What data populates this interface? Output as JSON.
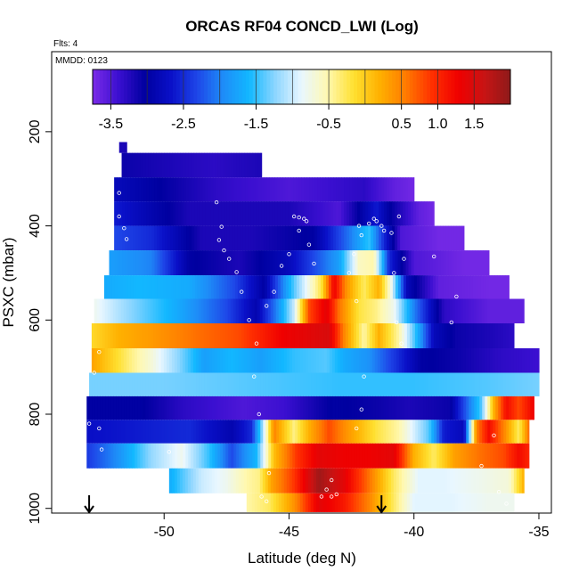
{
  "chart_data": {
    "type": "heatmap",
    "title": "ORCAS RF04 CONCD_LWI (Log)",
    "annotations": [
      "Flts: 4",
      "MMDD: 0123"
    ],
    "xlabel": "Latitude (deg N)",
    "ylabel": "PSXC (mbar)",
    "xlim": [
      -54.5,
      -34.5
    ],
    "ylim": [
      1010,
      30
    ],
    "y_reversed": true,
    "x_ticks": [
      -50,
      -45,
      -40,
      -35
    ],
    "y_ticks": [
      200,
      400,
      600,
      800,
      1000
    ],
    "colorbar": {
      "range": [
        -3.75,
        2.0
      ],
      "ticks": [
        -3.5,
        -2.5,
        -1.5,
        -0.5,
        0.5,
        1.0,
        1.5
      ],
      "tick_labels": [
        "-3.5",
        "-2.5",
        "-1.5",
        "-0.5",
        "0.5",
        "1.0",
        "1.5"
      ],
      "colors": [
        "#7B2CE8",
        "#3A0FD0",
        "#0000A0",
        "#0A10C8",
        "#1E46E8",
        "#1E8CF8",
        "#12B8FF",
        "#8ED6FF",
        "#E9F7FF",
        "#FFF8B0",
        "#FFE030",
        "#FFB000",
        "#FF7A00",
        "#FF3000",
        "#F00000",
        "#C81414",
        "#8E1A1A"
      ]
    },
    "bands": [
      {
        "p_top": 222,
        "p_bot": 245,
        "x_start": -51.8,
        "x_end": -51.5,
        "knots": [
          [
            -51.8,
            -3.2
          ],
          [
            -51.5,
            -3.2
          ]
        ]
      },
      {
        "p_top": 245,
        "p_bot": 297,
        "x_start": -51.7,
        "x_end": -46.1,
        "knots": [
          [
            -51.7,
            -3.1
          ],
          [
            -48,
            -3.3
          ],
          [
            -46.1,
            -3.2
          ]
        ]
      },
      {
        "p_top": 297,
        "p_bot": 348,
        "x_start": -52.0,
        "x_end": -40.0,
        "knots": [
          [
            -52,
            -2.8
          ],
          [
            -48,
            -3.3
          ],
          [
            -45,
            -3.5
          ],
          [
            -42,
            -3.3
          ],
          [
            -40.8,
            -3.6
          ],
          [
            -40,
            -3.7
          ]
        ]
      },
      {
        "p_top": 348,
        "p_bot": 400,
        "x_start": -52.0,
        "x_end": -39.2,
        "knots": [
          [
            -52,
            -2.6
          ],
          [
            -49,
            -3.2
          ],
          [
            -45,
            -3.2
          ],
          [
            -43,
            -3.5
          ],
          [
            -41.5,
            -2.6
          ],
          [
            -41,
            -3.0
          ],
          [
            -40.2,
            -3.4
          ],
          [
            -39.8,
            -3.6
          ],
          [
            -39.2,
            -3.7
          ]
        ]
      },
      {
        "p_top": 400,
        "p_bot": 452,
        "x_start": -52.0,
        "x_end": -38.0,
        "knots": [
          [
            -52,
            -2.3
          ],
          [
            -50.5,
            -2.5
          ],
          [
            -48.5,
            -3.2
          ],
          [
            -46.5,
            -3.2
          ],
          [
            -44,
            -3.0
          ],
          [
            -42.5,
            -2.0
          ],
          [
            -41.8,
            -1.5
          ],
          [
            -41.2,
            -2.5
          ],
          [
            -40.5,
            -3.5
          ],
          [
            -39,
            -3.7
          ],
          [
            -38,
            -3.7
          ]
        ]
      },
      {
        "p_top": 452,
        "p_bot": 505,
        "x_start": -52.2,
        "x_end": -37.0,
        "knots": [
          [
            -52.2,
            -1.8
          ],
          [
            -50.5,
            -2.0
          ],
          [
            -49,
            -3.0
          ],
          [
            -47,
            -3.2
          ],
          [
            -45,
            -2.8
          ],
          [
            -43,
            -1.8
          ],
          [
            -42.2,
            -0.6
          ],
          [
            -41.6,
            -0.5
          ],
          [
            -41,
            -2.5
          ],
          [
            -40,
            -3.5
          ],
          [
            -38,
            -3.7
          ],
          [
            -37,
            -3.7
          ]
        ]
      },
      {
        "p_top": 505,
        "p_bot": 555,
        "x_start": -52.4,
        "x_end": -36.2,
        "knots": [
          [
            -52.4,
            -1.7
          ],
          [
            -51,
            -1.6
          ],
          [
            -49,
            -1.7
          ],
          [
            -47.2,
            -2.3
          ],
          [
            -46,
            -3.0
          ],
          [
            -44.8,
            -1.4
          ],
          [
            -43.7,
            -0.2
          ],
          [
            -43.2,
            1.3
          ],
          [
            -42.7,
            0.4
          ],
          [
            -42,
            -0.3
          ],
          [
            -41.4,
            0.2
          ],
          [
            -40.9,
            -0.8
          ],
          [
            -40.3,
            -2.8
          ],
          [
            -39,
            -3.6
          ],
          [
            -37,
            -3.7
          ],
          [
            -36.2,
            -3.7
          ]
        ]
      },
      {
        "p_top": 555,
        "p_bot": 607,
        "x_start": -52.8,
        "x_end": -35.6,
        "knots": [
          [
            -52.8,
            -0.8
          ],
          [
            -51.5,
            -1.2
          ],
          [
            -49.5,
            -1.7
          ],
          [
            -47.5,
            -2.3
          ],
          [
            -46.3,
            -2.9
          ],
          [
            -45.5,
            -2.0
          ],
          [
            -44.8,
            -1.0
          ],
          [
            -44.2,
            0.8
          ],
          [
            -43.5,
            1.4
          ],
          [
            -43,
            0.6
          ],
          [
            -42.2,
            -0.2
          ],
          [
            -41.5,
            -0.4
          ],
          [
            -40.8,
            -0.8
          ],
          [
            -40,
            -2.0
          ],
          [
            -38.8,
            -3.3
          ],
          [
            -37,
            -3.6
          ],
          [
            -35.6,
            -3.6
          ]
        ]
      },
      {
        "p_top": 607,
        "p_bot": 660,
        "x_start": -52.9,
        "x_end": -36.0,
        "knots": [
          [
            -52.9,
            -0.1
          ],
          [
            -51.8,
            0.2
          ],
          [
            -50.5,
            0.35
          ],
          [
            -48.8,
            0.6
          ],
          [
            -47,
            0.8
          ],
          [
            -45.2,
            1.3
          ],
          [
            -43.4,
            1.5
          ],
          [
            -42.8,
            0.5
          ],
          [
            -42,
            -0.5
          ],
          [
            -41.4,
            0.2
          ],
          [
            -40.6,
            -0.5
          ],
          [
            -40,
            -1.4
          ],
          [
            -39.2,
            -2.8
          ],
          [
            -38.3,
            -3.1
          ],
          [
            -37,
            -3.2
          ],
          [
            -36,
            -3.3
          ]
        ]
      },
      {
        "p_top": 660,
        "p_bot": 712,
        "x_start": -52.9,
        "x_end": -35.0,
        "knots": [
          [
            -52.9,
            0.3
          ],
          [
            -52.2,
            0.0
          ],
          [
            -51.3,
            -0.4
          ],
          [
            -50.5,
            -0.7
          ],
          [
            -49.3,
            -1.3
          ],
          [
            -48.4,
            -1.8
          ],
          [
            -47.3,
            -1.6
          ],
          [
            -46.1,
            -1.8
          ],
          [
            -44.8,
            -1.5
          ],
          [
            -43.5,
            -1.4
          ],
          [
            -42.8,
            -1.7
          ],
          [
            -41.8,
            -1.9
          ],
          [
            -41,
            -2.3
          ],
          [
            -39.7,
            -3.0
          ],
          [
            -38.3,
            -3.1
          ],
          [
            -36.6,
            -3.3
          ],
          [
            -35,
            -3.4
          ]
        ]
      },
      {
        "p_top": 712,
        "p_bot": 762,
        "x_start": -53.0,
        "x_end": -35.0,
        "knots": [
          [
            -53,
            -1.3
          ],
          [
            -50,
            -1.3
          ],
          [
            -46.5,
            -1.4
          ],
          [
            -43,
            -1.5
          ],
          [
            -40,
            -1.5
          ],
          [
            -37,
            -1.4
          ],
          [
            -35,
            -1.3
          ]
        ]
      },
      {
        "p_top": 762,
        "p_bot": 812,
        "x_start": -53.1,
        "x_end": -35.2,
        "knots": [
          [
            -53.1,
            -3.0
          ],
          [
            -51,
            -3.0
          ],
          [
            -49.2,
            -3.3
          ],
          [
            -46.8,
            -3.5
          ],
          [
            -45.2,
            -3.4
          ],
          [
            -44.2,
            -3.2
          ],
          [
            -43.2,
            -3.0
          ],
          [
            -41.5,
            -3.1
          ],
          [
            -40.2,
            -3.2
          ],
          [
            -38.6,
            -3.1
          ],
          [
            -37.3,
            -1.4
          ],
          [
            -36.8,
            0.2
          ],
          [
            -36.3,
            1.2
          ],
          [
            -35.8,
            0.8
          ],
          [
            -35.2,
            1.3
          ]
        ]
      },
      {
        "p_top": 812,
        "p_bot": 862,
        "x_start": -53.1,
        "x_end": -35.4,
        "knots": [
          [
            -53.1,
            -2.7
          ],
          [
            -51,
            -2.6
          ],
          [
            -49,
            -2.5
          ],
          [
            -47.3,
            -2.9
          ],
          [
            -46.5,
            -2.5
          ],
          [
            -46.1,
            -1.3
          ],
          [
            -45.6,
            0.5
          ],
          [
            -44.8,
            -0.4
          ],
          [
            -44.2,
            0.2
          ],
          [
            -43.4,
            0.8
          ],
          [
            -42.7,
            0.4
          ],
          [
            -41.5,
            -0.2
          ],
          [
            -40.6,
            -0.5
          ],
          [
            -39.4,
            -1.4
          ],
          [
            -38.8,
            -2.6
          ],
          [
            -38,
            -2.8
          ],
          [
            -37.5,
            0.5
          ],
          [
            -37,
            1.2
          ],
          [
            -36.4,
            0.5
          ],
          [
            -35.8,
            -0.3
          ],
          [
            -35.4,
            0.6
          ]
        ]
      },
      {
        "p_top": 862,
        "p_bot": 915,
        "x_start": -53.1,
        "x_end": -35.4,
        "knots": [
          [
            -53.1,
            -2.4
          ],
          [
            -51.8,
            -1.9
          ],
          [
            -50.5,
            -1.2
          ],
          [
            -49.3,
            -0.8
          ],
          [
            -48.2,
            -1.5
          ],
          [
            -47.3,
            -2.3
          ],
          [
            -46.3,
            -1.6
          ],
          [
            -45.6,
            0.1
          ],
          [
            -44.7,
            0.9
          ],
          [
            -43.8,
            1.4
          ],
          [
            -42.8,
            1.3
          ],
          [
            -41.8,
            1.3
          ],
          [
            -40.8,
            1.4
          ],
          [
            -40,
            0.2
          ],
          [
            -39.2,
            -0.3
          ],
          [
            -38.4,
            0.3
          ],
          [
            -37.4,
            0.6
          ],
          [
            -36.4,
            0.8
          ],
          [
            -35.8,
            1.2
          ],
          [
            -35.4,
            1.0
          ]
        ]
      },
      {
        "p_top": 915,
        "p_bot": 968,
        "x_start": -49.8,
        "x_end": -35.6,
        "knots": [
          [
            -49.8,
            -1.7
          ],
          [
            -48.5,
            -1.0
          ],
          [
            -47.5,
            -0.8
          ],
          [
            -46.7,
            -0.5
          ],
          [
            -46.2,
            -0.4
          ],
          [
            -45.7,
            0.3
          ],
          [
            -44.8,
            0.9
          ],
          [
            -43.8,
            1.9
          ],
          [
            -42.8,
            1.4
          ],
          [
            -41.8,
            0.6
          ],
          [
            -40.8,
            -0.3
          ],
          [
            -39.8,
            -0.9
          ],
          [
            -38.8,
            -0.9
          ],
          [
            -37.5,
            -0.8
          ],
          [
            -36.2,
            -0.7
          ],
          [
            -35.6,
            0.2
          ]
        ]
      },
      {
        "p_top": 968,
        "p_bot": 1008,
        "x_start": -46.7,
        "x_end": -36.0,
        "knots": [
          [
            -46.7,
            -0.5
          ],
          [
            -45.8,
            -0.3
          ],
          [
            -44.8,
            0.4
          ],
          [
            -43.8,
            1.4
          ],
          [
            -42.8,
            1.1
          ],
          [
            -41.8,
            0.5
          ],
          [
            -40.8,
            -0.3
          ],
          [
            -40,
            -0.9
          ],
          [
            -38.5,
            -0.9
          ],
          [
            -37,
            -0.8
          ],
          [
            -36,
            -0.8
          ]
        ]
      }
    ],
    "points": [
      [
        -52.6,
        668
      ],
      [
        -52.8,
        712
      ],
      [
        -53.0,
        820
      ],
      [
        -52.6,
        830
      ],
      [
        -52.5,
        875
      ],
      [
        -51.9,
        232
      ],
      [
        -51.8,
        330
      ],
      [
        -51.8,
        380
      ],
      [
        -51.6,
        405
      ],
      [
        -51.5,
        428
      ],
      [
        -49.8,
        880
      ],
      [
        -47.7,
        402
      ],
      [
        -47.9,
        350
      ],
      [
        -47.8,
        430
      ],
      [
        -47.6,
        452
      ],
      [
        -47.4,
        470
      ],
      [
        -47.1,
        498
      ],
      [
        -46.9,
        540
      ],
      [
        -46.6,
        600
      ],
      [
        -46.3,
        650
      ],
      [
        -46.4,
        720
      ],
      [
        -46.2,
        800
      ],
      [
        -45.8,
        925
      ],
      [
        -46.1,
        975
      ],
      [
        -45.9,
        985
      ],
      [
        -45.0,
        460
      ],
      [
        -45.3,
        485
      ],
      [
        -45.6,
        540
      ],
      [
        -45.9,
        570
      ],
      [
        -44.8,
        380
      ],
      [
        -44.6,
        382
      ],
      [
        -44.4,
        385
      ],
      [
        -44.3,
        390
      ],
      [
        -44.6,
        410
      ],
      [
        -44.2,
        440
      ],
      [
        -44.0,
        480
      ],
      [
        -43.3,
        940
      ],
      [
        -43.5,
        960
      ],
      [
        -43.7,
        975
      ],
      [
        -43.3,
        975
      ],
      [
        -43.1,
        970
      ],
      [
        -42.2,
        400
      ],
      [
        -42.1,
        420
      ],
      [
        -42.4,
        460
      ],
      [
        -42.6,
        500
      ],
      [
        -42.3,
        560
      ],
      [
        -42.0,
        720
      ],
      [
        -42.1,
        790
      ],
      [
        -42.3,
        830
      ],
      [
        -41.8,
        395
      ],
      [
        -41.6,
        385
      ],
      [
        -41.5,
        390
      ],
      [
        -41.3,
        400
      ],
      [
        -41.2,
        410
      ],
      [
        -40.9,
        415
      ],
      [
        -40.6,
        380
      ],
      [
        -40.8,
        500
      ],
      [
        -40.4,
        470
      ],
      [
        -40.7,
        605
      ],
      [
        -40.5,
        650
      ],
      [
        -39.2,
        465
      ],
      [
        -38.3,
        550
      ],
      [
        -38.5,
        605
      ],
      [
        -37.3,
        910
      ],
      [
        -36.6,
        965
      ],
      [
        -36.3,
        990
      ],
      [
        -36.8,
        845
      ]
    ],
    "arrows_lat": [
      -53.0,
      -41.3
    ]
  }
}
